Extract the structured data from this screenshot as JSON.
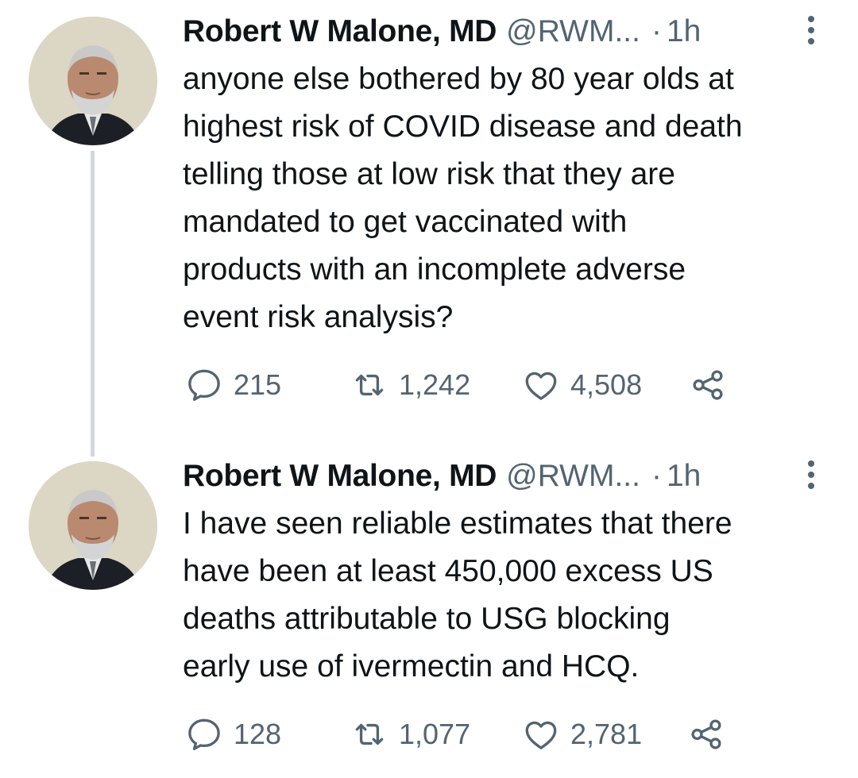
{
  "tweets": [
    {
      "author": {
        "display_name": "Robert W Malone, MD",
        "handle": "@RWM...",
        "avatar_icon": "author-avatar"
      },
      "separator": "·",
      "time": "1h",
      "text": "anyone else bothered by 80 year olds at\nhighest risk of COVID disease and death\ntelling those at low risk that they are\nmandated to get vaccinated with\nproducts with an incomplete adverse\nevent risk analysis?",
      "stats": {
        "replies": "215",
        "retweets": "1,242",
        "likes": "4,508"
      },
      "icons": [
        "more-vertical-icon",
        "reply-icon",
        "retweet-icon",
        "like-icon",
        "share-icon"
      ]
    },
    {
      "author": {
        "display_name": "Robert W Malone, MD",
        "handle": "@RWM...",
        "avatar_icon": "author-avatar"
      },
      "separator": "·",
      "time": "1h",
      "text": "I have seen reliable estimates that there\nhave been at least 450,000 excess US\ndeaths attributable to USG blocking\nearly use of ivermectin and HCQ.",
      "stats": {
        "replies": "128",
        "retweets": "1,077",
        "likes": "2,781"
      },
      "icons": [
        "more-vertical-icon",
        "reply-icon",
        "retweet-icon",
        "like-icon",
        "share-icon"
      ]
    }
  ],
  "colors": {
    "primary_text": "#0f1419",
    "secondary_text": "#536471",
    "thread_line": "#cfd9de",
    "background": "#ffffff"
  }
}
